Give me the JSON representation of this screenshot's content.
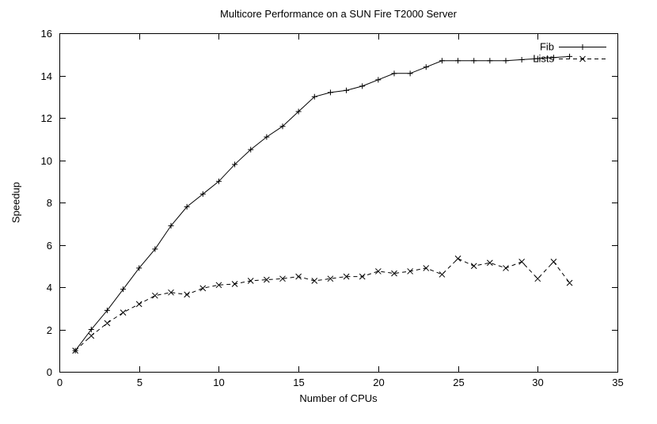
{
  "chart_data": {
    "type": "line",
    "title": "Multicore Performance on a SUN Fire T2000 Server",
    "xlabel": "Number of CPUs",
    "ylabel": "Speedup",
    "xlim": [
      0,
      35
    ],
    "ylim": [
      0,
      16
    ],
    "xticks": [
      0,
      5,
      10,
      15,
      20,
      25,
      30,
      35
    ],
    "yticks": [
      0,
      2,
      4,
      6,
      8,
      10,
      12,
      14,
      16
    ],
    "grid": false,
    "legend_position": "top-right-inside",
    "line_color": "#000000",
    "background_color": "#ffffff",
    "x": [
      1,
      2,
      3,
      4,
      5,
      6,
      7,
      8,
      9,
      10,
      11,
      12,
      13,
      14,
      15,
      16,
      17,
      18,
      19,
      20,
      21,
      22,
      23,
      24,
      25,
      26,
      27,
      28,
      29,
      30,
      31,
      32
    ],
    "series": [
      {
        "name": "Fib",
        "marker": "plus",
        "line": "solid",
        "values": [
          1.0,
          2.0,
          2.9,
          3.9,
          4.9,
          5.8,
          6.9,
          7.8,
          8.4,
          9.0,
          9.8,
          10.5,
          11.1,
          11.6,
          12.3,
          13.0,
          13.2,
          13.3,
          13.5,
          13.8,
          14.1,
          14.1,
          14.4,
          14.7,
          14.7,
          14.7,
          14.7,
          14.7,
          14.75,
          14.8,
          14.85,
          14.9
        ]
      },
      {
        "name": "Lists",
        "marker": "cross",
        "line": "dashed",
        "values": [
          1.0,
          1.7,
          2.3,
          2.8,
          3.2,
          3.6,
          3.75,
          3.65,
          3.95,
          4.1,
          4.15,
          4.3,
          4.35,
          4.4,
          4.5,
          4.3,
          4.4,
          4.5,
          4.5,
          4.75,
          4.65,
          4.75,
          4.9,
          4.6,
          5.35,
          5.0,
          5.15,
          4.9,
          5.2,
          4.4,
          5.2,
          4.2
        ]
      }
    ]
  }
}
